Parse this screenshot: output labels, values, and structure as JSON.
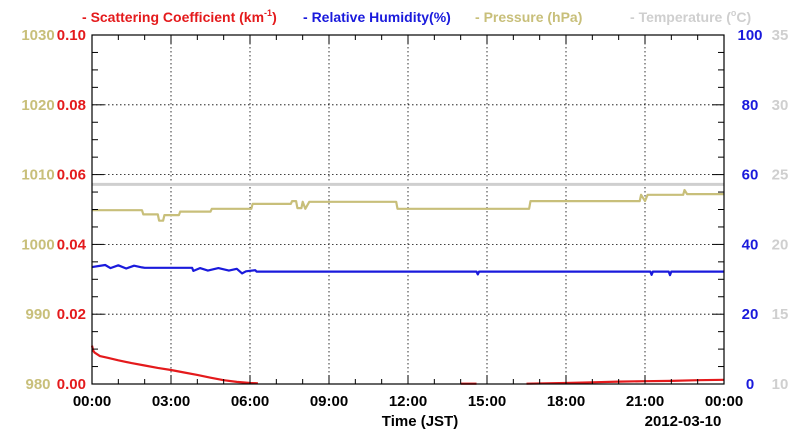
{
  "chart_data": {
    "type": "line",
    "legend": [
      {
        "text": "Scattering Coefficient (km",
        "sup": "-1",
        "tail": ")",
        "color": "#e41a1c"
      },
      {
        "text": "Relative Humidity(%)",
        "color": "#1a1adc"
      },
      {
        "text": "Pressure (hPa)",
        "color": "#c8bf7a"
      },
      {
        "text": "Temperature (",
        "sup": "o",
        "tail": "C)",
        "color": "#cfcfcf"
      }
    ],
    "xlabel": "Time (JST)",
    "date_label": "2012-03-10",
    "x_ticks": [
      "00:00",
      "03:00",
      "06:00",
      "09:00",
      "12:00",
      "15:00",
      "18:00",
      "21:00",
      "00:00"
    ],
    "x_range_hours": [
      0,
      24
    ],
    "grid": true,
    "axes": {
      "scattering": {
        "side": "left-inner",
        "color": "#e41a1c",
        "range": [
          0,
          0.1
        ],
        "ticks": [
          "0.00",
          "0.02",
          "0.04",
          "0.06",
          "0.08",
          "0.10"
        ]
      },
      "pressure": {
        "side": "left-outer",
        "color": "#c8bf7a",
        "range": [
          980,
          1030
        ],
        "ticks": [
          "980",
          "990",
          "1000",
          "1010",
          "1020",
          "1030"
        ]
      },
      "humidity": {
        "side": "right-inner",
        "color": "#1a1adc",
        "range": [
          0,
          100
        ],
        "ticks": [
          "0",
          "20",
          "40",
          "60",
          "80",
          "100"
        ]
      },
      "temperature": {
        "side": "right-outer",
        "color": "#cfcfcf",
        "range": [
          10,
          35
        ],
        "ticks": [
          "10",
          "15",
          "20",
          "25",
          "30",
          "35"
        ]
      }
    },
    "series": [
      {
        "key": "temperature",
        "name": "Temperature",
        "axis": "temperature",
        "color": "#cfcfcf",
        "points": [
          [
            0,
            24.3
          ],
          [
            24,
            24.3
          ]
        ]
      },
      {
        "key": "pressure",
        "name": "Pressure",
        "axis": "pressure",
        "color": "#c8bf7a",
        "points": [
          [
            0,
            1004.9
          ],
          [
            1.9,
            1004.9
          ],
          [
            1.95,
            1004.3
          ],
          [
            2.5,
            1004.3
          ],
          [
            2.55,
            1003.4
          ],
          [
            2.7,
            1003.4
          ],
          [
            2.75,
            1004.2
          ],
          [
            3.3,
            1004.2
          ],
          [
            3.35,
            1004.7
          ],
          [
            4.5,
            1004.7
          ],
          [
            4.55,
            1005.1
          ],
          [
            6.05,
            1005.1
          ],
          [
            6.1,
            1005.8
          ],
          [
            7.55,
            1005.8
          ],
          [
            7.6,
            1006.2
          ],
          [
            7.75,
            1006.2
          ],
          [
            7.8,
            1005.2
          ],
          [
            7.95,
            1005.2
          ],
          [
            8.0,
            1006.1
          ],
          [
            8.1,
            1005.1
          ],
          [
            8.25,
            1006.1
          ],
          [
            11.55,
            1006.1
          ],
          [
            11.6,
            1005.1
          ],
          [
            16.6,
            1005.1
          ],
          [
            16.65,
            1006.2
          ],
          [
            20.8,
            1006.2
          ],
          [
            20.85,
            1007.1
          ],
          [
            21.0,
            1006.2
          ],
          [
            21.1,
            1007.1
          ],
          [
            22.45,
            1007.1
          ],
          [
            22.5,
            1007.8
          ],
          [
            22.6,
            1007.2
          ],
          [
            24,
            1007.2
          ]
        ]
      },
      {
        "key": "humidity",
        "name": "Relative Humidity",
        "axis": "humidity",
        "color": "#1a1adc",
        "points": [
          [
            0,
            33.5
          ],
          [
            0.5,
            34.1
          ],
          [
            0.7,
            33.2
          ],
          [
            1.0,
            34.0
          ],
          [
            1.3,
            33.1
          ],
          [
            1.6,
            33.9
          ],
          [
            1.9,
            33.4
          ],
          [
            2.0,
            33.3
          ],
          [
            3.8,
            33.3
          ],
          [
            3.85,
            32.4
          ],
          [
            4.1,
            33.2
          ],
          [
            4.4,
            32.5
          ],
          [
            4.8,
            33.2
          ],
          [
            5.2,
            32.5
          ],
          [
            5.5,
            33.0
          ],
          [
            5.7,
            31.7
          ],
          [
            5.85,
            32.3
          ],
          [
            6.2,
            32.6
          ],
          [
            6.25,
            32.2
          ],
          [
            14.6,
            32.2
          ],
          [
            14.65,
            31.4
          ],
          [
            14.7,
            32.2
          ],
          [
            21.2,
            32.2
          ],
          [
            21.25,
            31.3
          ],
          [
            21.3,
            32.2
          ],
          [
            21.9,
            32.2
          ],
          [
            21.95,
            31.2
          ],
          [
            22.0,
            32.2
          ],
          [
            24,
            32.2
          ]
        ]
      },
      {
        "key": "scattering",
        "name": "Scattering Coefficient",
        "axis": "scattering",
        "color": "#e41a1c",
        "points": [
          [
            0,
            0.011
          ],
          [
            0.05,
            0.0095
          ],
          [
            0.1,
            0.009
          ],
          [
            0.3,
            0.008
          ],
          [
            0.6,
            0.0075
          ],
          [
            1.0,
            0.0068
          ],
          [
            1.5,
            0.006
          ],
          [
            2.0,
            0.0053
          ],
          [
            2.5,
            0.0046
          ],
          [
            3.0,
            0.004
          ],
          [
            3.5,
            0.0033
          ],
          [
            4.0,
            0.0026
          ],
          [
            4.5,
            0.0018
          ],
          [
            5.0,
            0.0011
          ],
          [
            5.5,
            0.0006
          ],
          [
            6.0,
            0.0003
          ],
          [
            6.3,
            0.0002
          ],
          [
            null,
            null
          ],
          [
            14.0,
            0.0001
          ],
          [
            14.6,
            0.0001
          ],
          [
            null,
            null
          ],
          [
            16.5,
            0.0001
          ],
          [
            18.0,
            0.0003
          ],
          [
            19.0,
            0.0005
          ],
          [
            20.0,
            0.0007
          ],
          [
            21.0,
            0.0008
          ],
          [
            22.0,
            0.0009
          ],
          [
            23.0,
            0.0011
          ],
          [
            24,
            0.0012
          ]
        ]
      }
    ]
  }
}
